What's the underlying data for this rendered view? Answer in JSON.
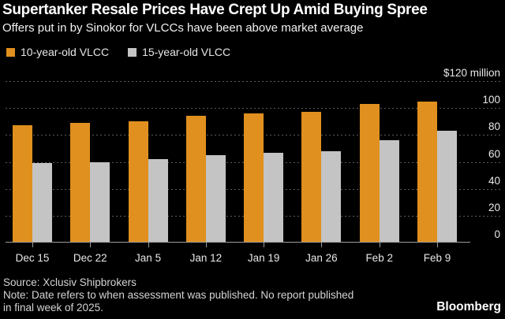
{
  "chart_data": {
    "type": "bar",
    "title": "Supertanker Resale Prices Have Crept Up Amid Buying Spree",
    "subtitle": "Offers put in by Sinokor for VLCCs have been above market average",
    "categories": [
      "Dec 15",
      "Dec 22",
      "Jan 5",
      "Jan 12",
      "Jan 19",
      "Jan 26",
      "Feb 2",
      "Feb 9"
    ],
    "series": [
      {
        "name": "10-year-old VLCC",
        "color": "#E0901E",
        "values": [
          87,
          89,
          90,
          94,
          96,
          97,
          103,
          105
        ]
      },
      {
        "name": "15-year-old VLCC",
        "color": "#C4C4C4",
        "values": [
          59,
          60,
          62,
          65,
          67,
          68,
          76,
          83
        ]
      }
    ],
    "ylabel": "$120 million",
    "ylim": [
      0,
      120
    ],
    "yticks": [
      {
        "value": 120,
        "label": "$120 million"
      },
      {
        "value": 100,
        "label": "100"
      },
      {
        "value": 80,
        "label": "80"
      },
      {
        "value": 60,
        "label": "60"
      },
      {
        "value": 40,
        "label": "40"
      },
      {
        "value": 20,
        "label": "20"
      },
      {
        "value": 0,
        "label": "0"
      }
    ],
    "grid": "horizontal-dotted",
    "legend_position": "top-left",
    "background_color": "#000000"
  },
  "footer": {
    "source": "Source: Xclusiv Shipbrokers",
    "note_line1": "Note: Date refers to when assessment was published. No report published",
    "note_line2": "in final week of 2025.",
    "brand": "Bloomberg"
  }
}
